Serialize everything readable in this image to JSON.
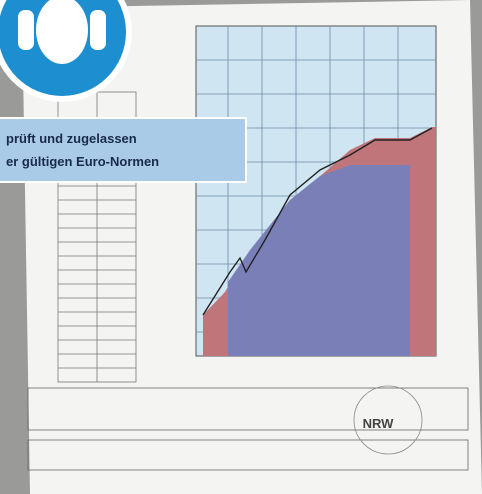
{
  "banner": {
    "line1": "prüft und zugelassen",
    "line2": "er gültigen Euro-Normen"
  },
  "stamp": "NRW"
}
